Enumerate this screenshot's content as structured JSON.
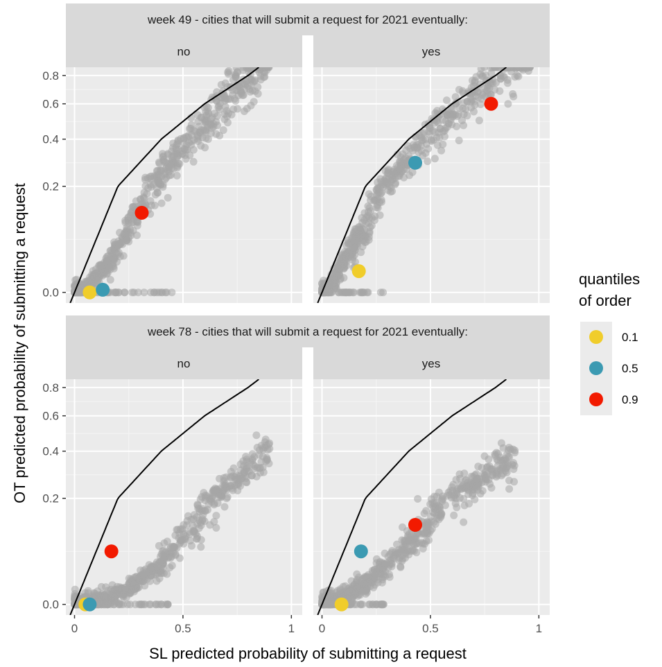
{
  "chart_data": {
    "type": "scatter",
    "xlabel": "SL predicted probability of submitting a request",
    "ylabel": "OT predicted probability of submitting a request",
    "x_scale": "linear",
    "y_scale": "sqrt-like (compressed)",
    "xlim": [
      0,
      1
    ],
    "ylim": [
      0,
      0.8
    ],
    "x_ticks": [
      0,
      0.5,
      1
    ],
    "x_tick_labels": [
      "0",
      "0.5",
      "1"
    ],
    "y_ticks": [
      0.0,
      0.2,
      0.4,
      0.6,
      0.8
    ],
    "y_tick_labels": [
      "0.0",
      "0.2",
      "0.4",
      "0.6",
      "0.8"
    ],
    "reference_line": "y = x",
    "grid": true,
    "row_strips": [
      "week 49 - cities that will submit a request for 2021 eventually:",
      "week 78 - cities that will submit a request for 2021 eventually:"
    ],
    "col_strips": [
      "no",
      "yes"
    ],
    "legend": {
      "title_line1": "quantiles",
      "title_line2": "of order",
      "position": "right",
      "entries": [
        {
          "label": "0.1",
          "color": "#F0CD2B"
        },
        {
          "label": "0.5",
          "color": "#3B9AB2"
        },
        {
          "label": "0.9",
          "color": "#F21A00"
        }
      ]
    },
    "background_points_color": "#A6A6A6",
    "panels": [
      {
        "row": "week 49",
        "col": "no",
        "cloud": {
          "k": 1.1,
          "p": 1.6,
          "xmax": 0.9,
          "yfloor": 0.0
        },
        "quantiles": [
          {
            "q": "0.1",
            "x": 0.07,
            "y": 0.0
          },
          {
            "q": "0.5",
            "x": 0.13,
            "y": 0.005
          },
          {
            "q": "0.9",
            "x": 0.31,
            "y": 0.15
          }
        ]
      },
      {
        "row": "week 49",
        "col": "yes",
        "cloud": {
          "k": 1.05,
          "p": 1.3,
          "xmax": 0.96,
          "yfloor": 0.0
        },
        "quantiles": [
          {
            "q": "0.1",
            "x": 0.17,
            "y": 0.04
          },
          {
            "q": "0.5",
            "x": 0.43,
            "y": 0.3
          },
          {
            "q": "0.9",
            "x": 0.78,
            "y": 0.6
          }
        ]
      },
      {
        "row": "week 78",
        "col": "no",
        "cloud": {
          "k": 0.5,
          "p": 2.0,
          "xmax": 0.9,
          "yfloor": 0.0
        },
        "quantiles": [
          {
            "q": "0.1",
            "x": 0.05,
            "y": 0.0
          },
          {
            "q": "0.5",
            "x": 0.07,
            "y": 0.0
          },
          {
            "q": "0.9",
            "x": 0.17,
            "y": 0.1
          }
        ]
      },
      {
        "row": "week 78",
        "col": "yes",
        "cloud": {
          "k": 0.45,
          "p": 1.5,
          "xmax": 0.9,
          "yfloor": 0.0
        },
        "quantiles": [
          {
            "q": "0.1",
            "x": 0.09,
            "y": 0.0
          },
          {
            "q": "0.5",
            "x": 0.18,
            "y": 0.1
          },
          {
            "q": "0.9",
            "x": 0.43,
            "y": 0.15
          }
        ]
      }
    ]
  }
}
